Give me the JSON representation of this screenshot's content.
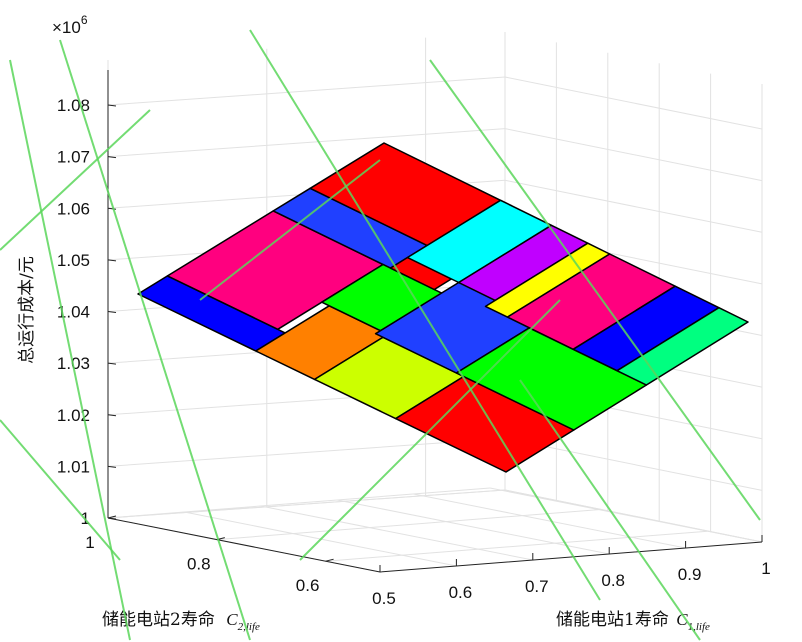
{
  "chart_data": {
    "type": "surface",
    "title": "",
    "zlabel": "总运行成本/元",
    "xlabel": {
      "text": "储能电站1寿命 ",
      "symbol": "C",
      "subscript": "1,life"
    },
    "ylabel": {
      "text": "储能电站2寿命 ",
      "symbol": "C",
      "subscript": "2,life"
    },
    "z_multiplier": "×10",
    "z_exponent": "6",
    "x_ticks": [
      "0.5",
      "0.6",
      "0.7",
      "0.8",
      "0.9",
      "1"
    ],
    "y_ticks": [
      "1",
      "0.8",
      "0.6"
    ],
    "z_ticks": [
      "1",
      "1.01",
      "1.02",
      "1.03",
      "1.04",
      "1.05",
      "1.06",
      "1.07",
      "1.08"
    ],
    "xlim": [
      0.5,
      1
    ],
    "ylim": [
      0.5,
      1
    ],
    "zlim": [
      1.0,
      1.08
    ],
    "grid": true,
    "surface_corners": [
      {
        "x": 0.5,
        "y": 0.5,
        "z": 1.008
      },
      {
        "x": 1.0,
        "y": 0.5,
        "z": 1.04
      },
      {
        "x": 1.0,
        "y": 1.0,
        "z": 1.072
      },
      {
        "x": 0.5,
        "y": 1.0,
        "z": 1.044
      }
    ],
    "regions": [
      {
        "color": "#ff0000"
      },
      {
        "color": "#ff00ff"
      },
      {
        "color": "#c000ff"
      },
      {
        "color": "#00ffff"
      },
      {
        "color": "#ffff00"
      },
      {
        "color": "#ff007f"
      },
      {
        "color": "#0000ff"
      },
      {
        "color": "#00ff00"
      },
      {
        "color": "#ff8000"
      },
      {
        "color": "#2040ff"
      },
      {
        "color": "#ccff00"
      },
      {
        "color": "#00ff80"
      }
    ]
  }
}
